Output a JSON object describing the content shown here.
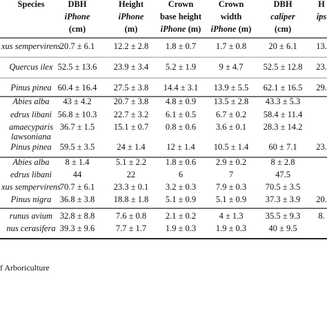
{
  "table": {
    "header": [
      {
        "lines": [
          [
            {
              "text": "Species"
            }
          ]
        ]
      },
      {
        "lines": [
          [
            {
              "text": "DBH"
            }
          ],
          [
            {
              "text": "iPhone",
              "italic": true
            }
          ],
          [
            {
              "text": "(cm)"
            }
          ]
        ]
      },
      {
        "lines": [
          [
            {
              "text": "Height"
            }
          ],
          [
            {
              "text": "iPhone",
              "italic": true
            }
          ],
          [
            {
              "text": "(m)"
            }
          ]
        ]
      },
      {
        "lines": [
          [
            {
              "text": "Crown"
            }
          ],
          [
            {
              "text": "base height"
            }
          ],
          [
            {
              "text": "iPhone",
              "italic": true
            },
            {
              "text": " (m)"
            }
          ]
        ]
      },
      {
        "lines": [
          [
            {
              "text": "Crown"
            }
          ],
          [
            {
              "text": "width"
            }
          ],
          [
            {
              "text": "iPhone",
              "italic": true
            },
            {
              "text": " (m)"
            }
          ]
        ]
      },
      {
        "lines": [
          [
            {
              "text": "DBH"
            }
          ],
          [
            {
              "text": "caliper",
              "italic": true
            }
          ],
          [
            {
              "text": "(cm)"
            }
          ]
        ]
      },
      {
        "lines": [
          [
            {
              "text": "H"
            }
          ],
          [
            {
              "text": "ips",
              "italic": true
            }
          ]
        ]
      }
    ],
    "groups": [
      [
        {
          "species": [
            "xus sempervirens"
          ],
          "cells": [
            "20.7 ± 6.1",
            "12.2 ± 2.8",
            "1.8 ± 0.7",
            "1.7 ± 0.8",
            "20 ± 6.1",
            "13."
          ]
        },
        {
          "species": [
            "Quercus ilex"
          ],
          "cells": [
            "52.5 ± 13.6",
            "23.9 ± 3.4",
            "5.2 ± 1.9",
            "9 ± 4.7",
            "52.5 ± 12.8",
            "23."
          ]
        },
        {
          "species": [
            "Pinus pinea"
          ],
          "cells": [
            "60.4 ± 16.4",
            "27.5 ± 3.8",
            "14.4 ± 3.1",
            "13.9 ± 5.5",
            "62.1 ± 16.5",
            "29."
          ]
        }
      ],
      [
        {
          "species": [
            "Abies alba"
          ],
          "cells": [
            "43 ± 4.2",
            "20.7 ± 3.8",
            "4.8 ± 0.9",
            "13.5 ± 2.8",
            "43.3 ± 5.3"
          ]
        },
        {
          "species": [
            "edrus libani"
          ],
          "cells": [
            "56.8 ± 10.3",
            "22.7 ± 3.2",
            "6.1 ± 0.5",
            "6.7 ± 0.2",
            "58.4 ± 11.4"
          ]
        },
        {
          "species": [
            "amaecyparis",
            "lawsoniana"
          ],
          "cells": [
            "36.7 ± 1.5",
            "15.1 ± 0.7",
            "0.8 ± 0.6",
            "3.6 ± 0.1",
            "28.3 ± 14.2"
          ]
        },
        {
          "species": [
            "Pinus pinea"
          ],
          "cells": [
            "59.5 ± 3.5",
            "24 ± 1.4",
            "12 ± 1.4",
            "10.5 ± 1.4",
            "60 ± 7.1",
            "23."
          ]
        }
      ],
      [
        {
          "species": [
            "Abies alba"
          ],
          "cells": [
            "8 ± 1.4",
            "5.1 ± 2.2",
            "1.8 ± 0.6",
            "2.9 ± 0.2",
            "8 ± 2.8"
          ]
        },
        {
          "species": [
            "edrus libani"
          ],
          "cells": [
            "44",
            "22",
            "6",
            "7",
            "47.5"
          ]
        },
        {
          "species": [
            "xus sempervirens"
          ],
          "cells": [
            "70.7 ± 6.1",
            "23.3 ± 0.1",
            "3.2 ± 0.3",
            "7.9 ± 0.3",
            "70.5 ± 3.5"
          ]
        },
        {
          "species": [
            "Pinus nigra"
          ],
          "cells": [
            "36.8 ± 3.8",
            "18.8 ± 1.8",
            "5.1 ± 0.9",
            "5.1 ± 0.9",
            "37.3 ± 3.9",
            "20."
          ]
        }
      ],
      [
        {
          "species": [
            "runus avium"
          ],
          "cells": [
            "32.8 ± 8.8",
            "7.6 ± 0.8",
            "2.1 ± 0.2",
            "4 ± 1.3",
            "35.5 ± 9.3",
            "8."
          ]
        },
        {
          "species": [
            "nus cerasifera"
          ],
          "cells": [
            "39.3 ± 9.6",
            "7.7 ± 1.7",
            "1.9 ± 0.3",
            "1.9 ± 0.3",
            "40 ± 9.5"
          ]
        }
      ]
    ]
  },
  "footer": "f Arboriculture"
}
